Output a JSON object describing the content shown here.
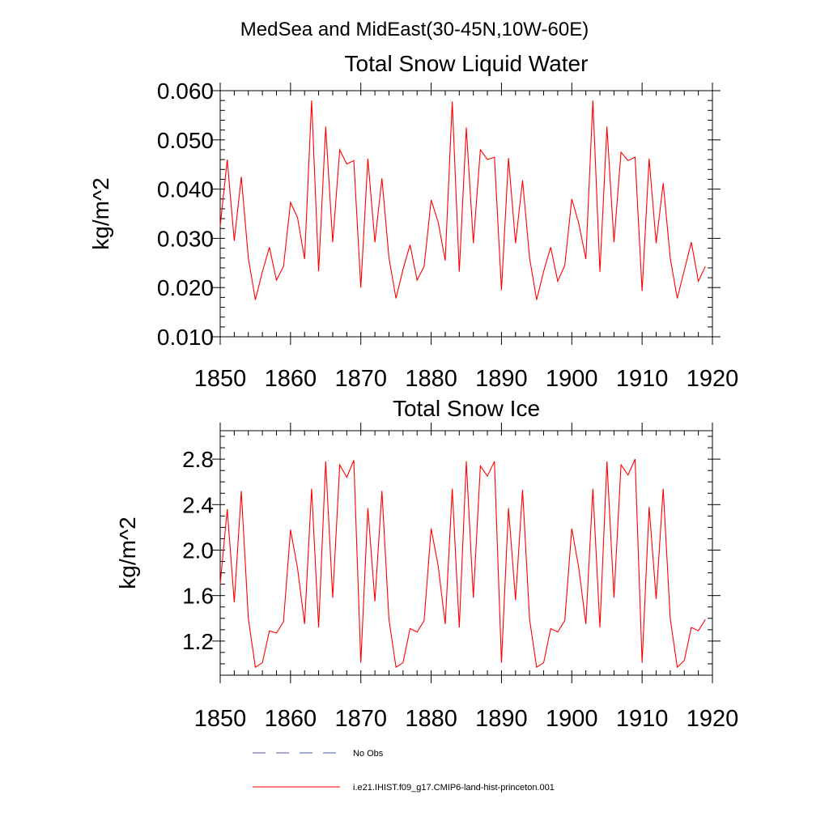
{
  "figure": {
    "title": "MedSea and MidEast(30-45N,10W-60E)"
  },
  "colors": {
    "model": "#ff0000",
    "obs": "#4a5aa8",
    "axis": "#000000"
  },
  "legend": {
    "placement": "bottom",
    "obs_label": "No Obs",
    "model_label": "i.e21.IHIST.f09_g17.CMIP6-land-hist-princeton.001"
  },
  "chart_data": [
    {
      "type": "line",
      "title": "Total Snow Liquid Water",
      "xlabel": "",
      "ylabel": "kg/m^2",
      "xlim": [
        1850,
        1920
      ],
      "ylim": [
        0.01,
        0.06
      ],
      "xticks": [
        1850,
        1860,
        1870,
        1880,
        1890,
        1900,
        1910,
        1920
      ],
      "xtick_labels": [
        "1850",
        "1860",
        "1870",
        "1880",
        "1890",
        "1900",
        "1910",
        "1920"
      ],
      "yticks": [
        0.01,
        0.02,
        0.03,
        0.04,
        0.05,
        0.06
      ],
      "ytick_labels": [
        "0.010",
        "0.020",
        "0.030",
        "0.040",
        "0.050",
        "0.060"
      ],
      "ytick_minor_step": 0.002,
      "xtick_minor_step": 2,
      "grid": false,
      "x_start": 1850,
      "series": [
        {
          "name": "i.e21.IHIST.f09_g17.CMIP6-land-hist-princeton.001",
          "values": [
            0.0325,
            0.046,
            0.0295,
            0.0425,
            0.026,
            0.0175,
            0.0232,
            0.0282,
            0.0215,
            0.0243,
            0.0373,
            0.0342,
            0.0258,
            0.058,
            0.0233,
            0.0527,
            0.0292,
            0.048,
            0.0451,
            0.0458,
            0.02,
            0.0462,
            0.0292,
            0.0422,
            0.026,
            0.0178,
            0.0237,
            0.0287,
            0.0215,
            0.0243,
            0.0378,
            0.0333,
            0.0255,
            0.0578,
            0.0232,
            0.0525,
            0.029,
            0.048,
            0.046,
            0.0465,
            0.0195,
            0.0463,
            0.029,
            0.0418,
            0.026,
            0.0175,
            0.0233,
            0.0282,
            0.0213,
            0.0245,
            0.038,
            0.033,
            0.0258,
            0.058,
            0.0232,
            0.0527,
            0.0292,
            0.0475,
            0.0458,
            0.0465,
            0.0193,
            0.0462,
            0.029,
            0.0412,
            0.026,
            0.0178,
            0.0235,
            0.0292,
            0.0213,
            0.0243
          ]
        }
      ]
    },
    {
      "type": "line",
      "title": "Total Snow Ice",
      "xlabel": "",
      "ylabel": "kg/m^2",
      "xlim": [
        1850,
        1920
      ],
      "ylim": [
        0.9,
        3.05
      ],
      "xticks": [
        1850,
        1860,
        1870,
        1880,
        1890,
        1900,
        1910,
        1920
      ],
      "xtick_labels": [
        "1850",
        "1860",
        "1870",
        "1880",
        "1890",
        "1900",
        "1910",
        "1920"
      ],
      "yticks": [
        1.2,
        1.6,
        2.0,
        2.4,
        2.8
      ],
      "ytick_labels": [
        "1.2",
        "1.6",
        "2.0",
        "2.4",
        "2.8"
      ],
      "ytick_minor_step": 0.1,
      "xtick_minor_step": 2,
      "grid": false,
      "x_start": 1850,
      "series": [
        {
          "name": "i.e21.IHIST.f09_g17.CMIP6-land-hist-princeton.001",
          "values": [
            1.7,
            2.36,
            1.54,
            2.52,
            1.4,
            0.97,
            1.01,
            1.29,
            1.27,
            1.37,
            2.18,
            1.84,
            1.35,
            2.54,
            1.32,
            2.78,
            1.58,
            2.75,
            2.64,
            2.79,
            1.01,
            2.37,
            1.55,
            2.52,
            1.39,
            0.97,
            1.01,
            1.31,
            1.28,
            1.38,
            2.19,
            1.86,
            1.35,
            2.54,
            1.32,
            2.78,
            1.58,
            2.74,
            2.65,
            2.78,
            1.01,
            2.37,
            1.56,
            2.53,
            1.39,
            0.97,
            1.01,
            1.31,
            1.28,
            1.38,
            2.19,
            1.84,
            1.35,
            2.54,
            1.32,
            2.78,
            1.58,
            2.75,
            2.66,
            2.8,
            1.01,
            2.38,
            1.57,
            2.54,
            1.4,
            0.97,
            1.03,
            1.32,
            1.29,
            1.39
          ]
        }
      ]
    }
  ]
}
